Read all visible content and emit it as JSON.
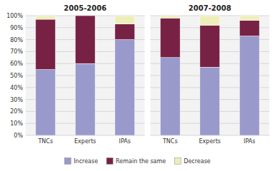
{
  "chart_data": [
    {
      "type": "bar",
      "stacked": true,
      "title": "2005-2006",
      "categories": [
        "TNCs",
        "Experts",
        "IPAs"
      ],
      "series": [
        {
          "name": "Increase",
          "color": "#9999CC",
          "values": [
            55,
            60,
            80
          ]
        },
        {
          "name": "Remain the same",
          "color": "#772244",
          "values": [
            42,
            40,
            13
          ]
        },
        {
          "name": "Decrease",
          "color": "#EEEEBB",
          "values": [
            3,
            0,
            7
          ]
        }
      ],
      "ylim": [
        0,
        100
      ],
      "yticks": [
        {
          "value": 0,
          "label": "0%"
        },
        {
          "value": 10,
          "label": "10%"
        },
        {
          "value": 20,
          "label": "20%"
        },
        {
          "value": 30,
          "label": "30%"
        },
        {
          "value": 40,
          "label": "40%"
        },
        {
          "value": 50,
          "label": "50%"
        },
        {
          "value": 60,
          "label": "60%"
        },
        {
          "value": 70,
          "label": "70%"
        },
        {
          "value": 80,
          "label": "80%"
        },
        {
          "value": 90,
          "label": "90%"
        },
        {
          "value": 100,
          "label": "100%"
        }
      ],
      "grid": true,
      "legend": "bottom"
    },
    {
      "type": "bar",
      "stacked": true,
      "title": "2007-2008",
      "categories": [
        "TNCs",
        "Experts",
        "IPAs"
      ],
      "series": [
        {
          "name": "Increase",
          "color": "#9999CC",
          "values": [
            65,
            57,
            83
          ]
        },
        {
          "name": "Remain the same",
          "color": "#772244",
          "values": [
            33,
            35,
            13
          ]
        },
        {
          "name": "Decrease",
          "color": "#EEEEBB",
          "values": [
            2,
            8,
            4
          ]
        }
      ],
      "ylim": [
        0,
        100
      ],
      "yticks": [
        0,
        10,
        20,
        30,
        40,
        50,
        60,
        70,
        80,
        90,
        100
      ],
      "grid": true,
      "tick_labels": "x"
    }
  ]
}
